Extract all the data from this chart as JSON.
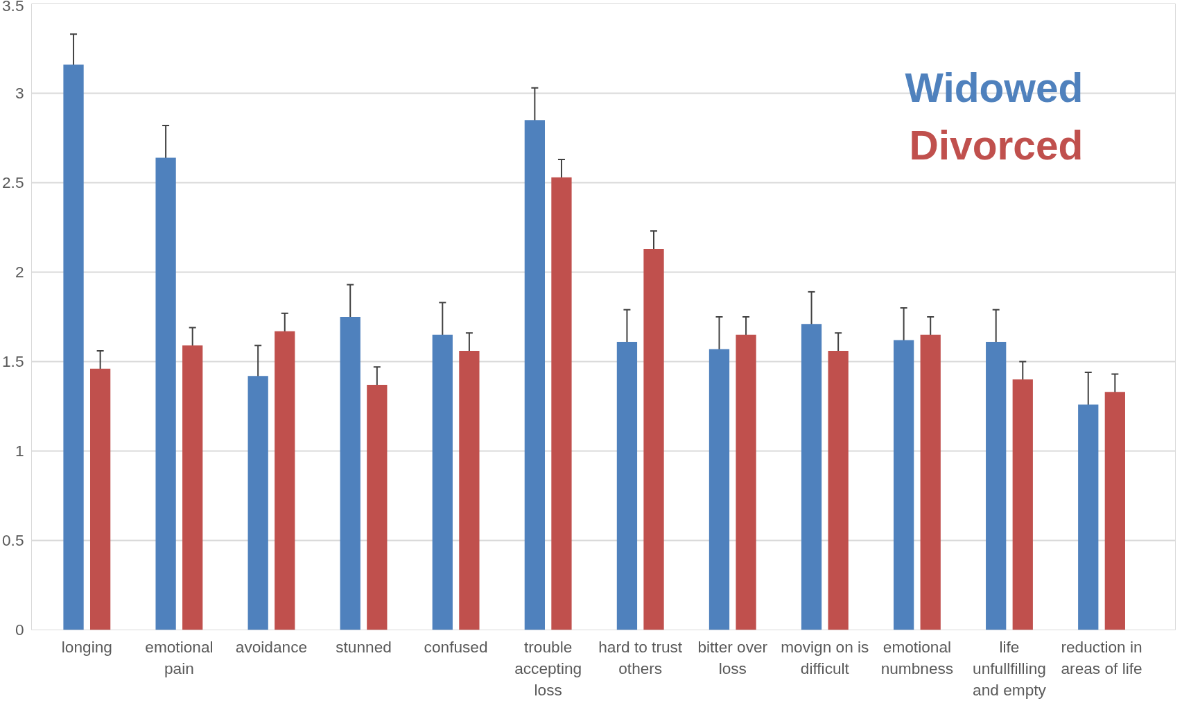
{
  "chart_data": {
    "type": "bar",
    "categories": [
      "longing",
      "emotional pain",
      "avoidance",
      "stunned",
      "confused",
      "trouble accepting loss",
      "hard to trust others",
      "bitter over loss",
      "movign on is difficult",
      "emotional numbness",
      "life unfullfilling and empty",
      "reduction in areas of life"
    ],
    "series": [
      {
        "name": "Widowed",
        "color": "#4f81bd",
        "values": [
          3.16,
          2.64,
          1.42,
          1.75,
          1.65,
          2.85,
          1.61,
          1.57,
          1.71,
          1.62,
          1.61,
          1.26
        ],
        "errors": [
          0.17,
          0.18,
          0.17,
          0.18,
          0.18,
          0.18,
          0.18,
          0.18,
          0.18,
          0.18,
          0.18,
          0.18
        ]
      },
      {
        "name": "Divorced",
        "color": "#c0504d",
        "values": [
          1.46,
          1.59,
          1.67,
          1.37,
          1.56,
          2.53,
          2.13,
          1.65,
          1.56,
          1.65,
          1.4,
          1.33
        ],
        "errors": [
          0.1,
          0.1,
          0.1,
          0.1,
          0.1,
          0.1,
          0.1,
          0.1,
          0.1,
          0.1,
          0.1,
          0.1
        ]
      }
    ],
    "ylim": [
      0,
      3.5
    ],
    "yticks": [
      0,
      0.5,
      1,
      1.5,
      2,
      2.5,
      3,
      3.5
    ],
    "grid": "y",
    "legend": "top right"
  }
}
